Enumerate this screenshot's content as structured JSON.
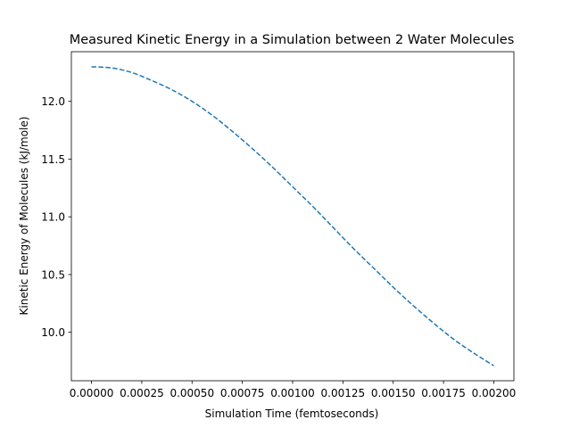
{
  "chart_data": {
    "type": "line",
    "title": "Measured Kinetic Energy in a Simulation between 2 Water Molecules",
    "xlabel": "Simulation Time (femtoseconds)",
    "ylabel": "Kinetic Energy of Molecules (kJ/mole)",
    "xlim": [
      -0.0001,
      0.0021
    ],
    "ylim": [
      9.58,
      12.43
    ],
    "x_ticks": [
      0.0,
      0.00025,
      0.0005,
      0.00075,
      0.001,
      0.00125,
      0.0015,
      0.00175,
      0.002
    ],
    "x_tick_labels": [
      "0.00000",
      "0.00025",
      "0.00050",
      "0.00075",
      "0.00100",
      "0.00125",
      "0.00150",
      "0.00175",
      "0.00200"
    ],
    "y_ticks": [
      10.0,
      10.5,
      11.0,
      11.5,
      12.0
    ],
    "y_tick_labels": [
      "10.0",
      "10.5",
      "11.0",
      "11.5",
      "12.0"
    ],
    "grid": false,
    "series": [
      {
        "line_style": "dashed",
        "color": "#1f77b4",
        "x": [
          0.0,
          0.0001,
          0.0002,
          0.0003,
          0.0004,
          0.0005,
          0.0006,
          0.0007,
          0.0008,
          0.0009,
          0.001,
          0.0011,
          0.0012,
          0.0013,
          0.0014,
          0.0015,
          0.0016,
          0.0017,
          0.0018,
          0.0019,
          0.002
        ],
        "y": [
          12.3,
          12.29,
          12.25,
          12.18,
          12.1,
          12.0,
          11.88,
          11.74,
          11.59,
          11.43,
          11.26,
          11.09,
          10.91,
          10.73,
          10.56,
          10.39,
          10.23,
          10.08,
          9.94,
          9.82,
          9.71
        ]
      }
    ]
  }
}
